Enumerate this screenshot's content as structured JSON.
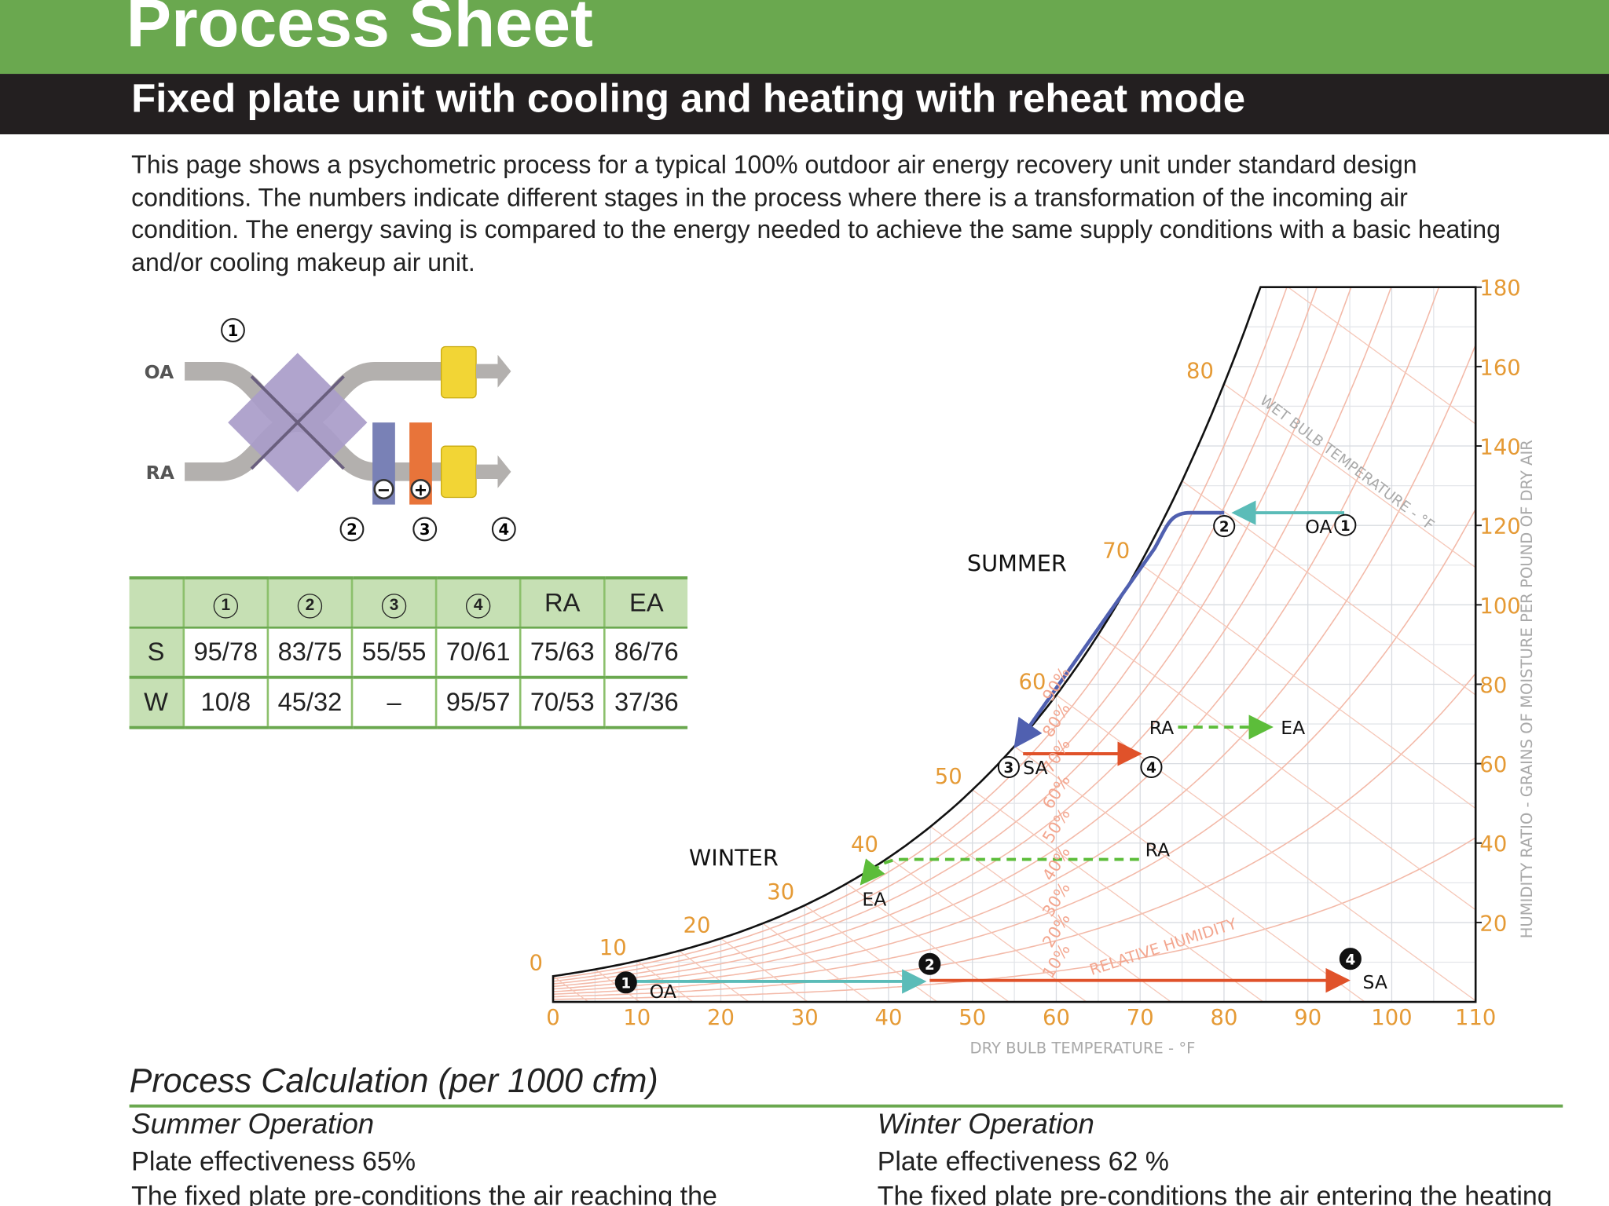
{
  "header": {
    "title": "Process Sheet",
    "subtitle": "Fixed plate unit with cooling and heating with reheat mode"
  },
  "intro": "This page shows a psychometric process for a typical 100% outdoor air energy recovery unit under standard design conditions. The numbers indicate different stages in the process where there is a transformation of the incoming air condition. The energy saving is compared to the energy needed to achieve the same supply conditions with a basic heating and/or cooling makeup air unit.",
  "diagram": {
    "inlets": [
      "OA",
      "RA"
    ],
    "stages": [
      "1",
      "2",
      "3",
      "4"
    ],
    "coils": [
      "−",
      "+"
    ]
  },
  "table": {
    "columns": [
      "1",
      "2",
      "3",
      "4",
      "RA",
      "EA"
    ],
    "rows": [
      {
        "label": "S",
        "cells": [
          "95/78",
          "83/75",
          "55/55",
          "70/61",
          "75/63",
          "86/76"
        ]
      },
      {
        "label": "W",
        "cells": [
          "10/8",
          "45/32",
          "–",
          "95/57",
          "70/53",
          "37/36"
        ]
      }
    ]
  },
  "chart": {
    "x_label": "DRY BULB TEMPERATURE - °F",
    "y_label": "HUMIDITY RATIO - GRAINS OF MOISTURE PER POUND OF DRY AIR",
    "xlim": [
      0,
      110
    ],
    "ylim": [
      0,
      180
    ],
    "xticks": [
      0,
      10,
      20,
      30,
      40,
      50,
      60,
      70,
      80,
      90,
      100,
      110
    ],
    "yticks": [
      20,
      40,
      60,
      80,
      100,
      120,
      140,
      160,
      180
    ],
    "wet_bulb_title": "WET BULB TEMPERATURE - °F",
    "wet_bulb_labels": [
      0,
      10,
      20,
      30,
      40,
      50,
      60,
      70,
      80
    ],
    "rh_title": "RELATIVE HUMIDITY",
    "rh_labels": [
      "10%",
      "20%",
      "30%",
      "40%",
      "50%",
      "60%",
      "70%",
      "80%",
      "90%"
    ],
    "seasons": [
      {
        "name": "SUMMER",
        "points": [
          "1",
          "OA",
          "2",
          "3",
          "SA",
          "4",
          "RA",
          "EA"
        ]
      },
      {
        "name": "WINTER",
        "points": [
          "1",
          "OA",
          "2",
          "4",
          "SA",
          "RA",
          "EA"
        ]
      }
    ]
  },
  "calc": {
    "title": "Process Calculation (per 1000 cfm)",
    "sections": [
      {
        "title": "Summer Operation",
        "effectiveness": "Plate effectiveness 65%",
        "text": "The fixed plate pre-conditions the air reaching the"
      },
      {
        "title": "Winter Operation",
        "effectiveness": "Plate effectiveness 62 %",
        "text": "The fixed plate pre-conditions the air entering the heating"
      }
    ]
  }
}
